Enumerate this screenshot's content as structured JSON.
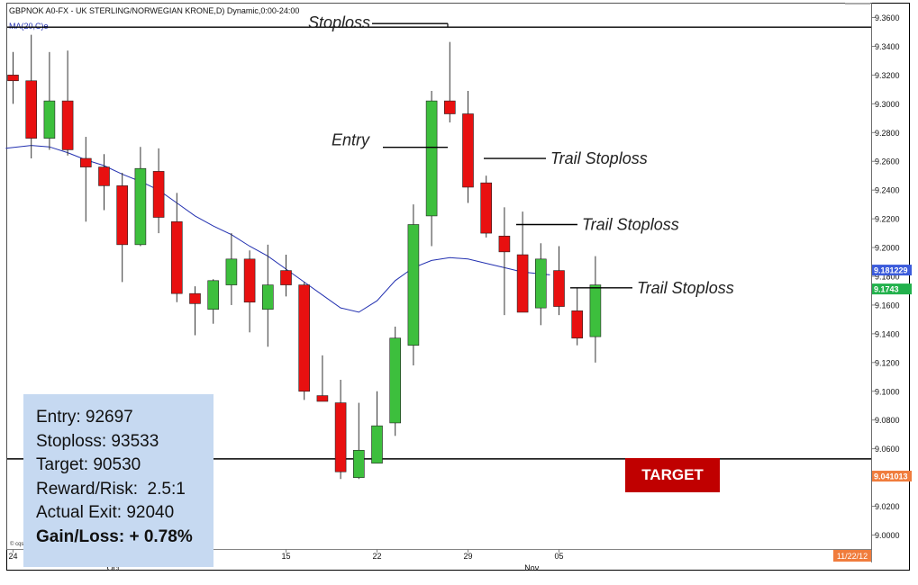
{
  "chart_header": {
    "symbol_line": "GBPNOK A0-FX - UK STERLING/NORWEGIAN KRONE,D) Dynamic,0:00-24:00",
    "indicator_line": "MA(20,C)e",
    "date_stamp": "11/22/12",
    "copyright": "© cqs"
  },
  "chart_data": {
    "type": "candlestick",
    "ylim": [
      8.99,
      9.37
    ],
    "y_ticks": [
      "9.3600",
      "9.3400",
      "9.3200",
      "9.3000",
      "9.2800",
      "9.2600",
      "9.2400",
      "9.2200",
      "9.2000",
      "9.1800",
      "9.1600",
      "9.1400",
      "9.1200",
      "9.1000",
      "9.0800",
      "9.0600",
      "9.0400",
      "9.0200",
      "9.0000"
    ],
    "y_tick_values": [
      9.36,
      9.34,
      9.32,
      9.3,
      9.28,
      9.26,
      9.24,
      9.22,
      9.2,
      9.18,
      9.16,
      9.14,
      9.12,
      9.1,
      9.08,
      9.06,
      9.04,
      9.02,
      9.0
    ],
    "x_tick_labels": [
      {
        "label": "24",
        "index": 0
      },
      {
        "label": "15",
        "index": 15
      },
      {
        "label": "22",
        "index": 20
      },
      {
        "label": "29",
        "index": 25
      },
      {
        "label": "05",
        "index": 30
      }
    ],
    "month_labels": [
      {
        "label": "Oct",
        "index": 5.5
      },
      {
        "label": "Nov",
        "index": 28.5
      }
    ],
    "candles": [
      {
        "o": 9.32,
        "h": 9.336,
        "l": 9.3,
        "c": 9.316
      },
      {
        "o": 9.316,
        "h": 9.348,
        "l": 9.262,
        "c": 9.276
      },
      {
        "o": 9.276,
        "h": 9.336,
        "l": 9.268,
        "c": 9.302
      },
      {
        "o": 9.302,
        "h": 9.337,
        "l": 9.264,
        "c": 9.268
      },
      {
        "o": 9.262,
        "h": 9.277,
        "l": 9.218,
        "c": 9.256
      },
      {
        "o": 9.256,
        "h": 9.265,
        "l": 9.226,
        "c": 9.243
      },
      {
        "o": 9.243,
        "h": 9.252,
        "l": 9.176,
        "c": 9.202
      },
      {
        "o": 9.202,
        "h": 9.27,
        "l": 9.201,
        "c": 9.255
      },
      {
        "o": 9.253,
        "h": 9.269,
        "l": 9.21,
        "c": 9.221
      },
      {
        "o": 9.218,
        "h": 9.238,
        "l": 9.162,
        "c": 9.168
      },
      {
        "o": 9.168,
        "h": 9.173,
        "l": 9.139,
        "c": 9.161
      },
      {
        "o": 9.157,
        "h": 9.178,
        "l": 9.147,
        "c": 9.177
      },
      {
        "o": 9.174,
        "h": 9.21,
        "l": 9.16,
        "c": 9.192
      },
      {
        "o": 9.192,
        "h": 9.198,
        "l": 9.141,
        "c": 9.162
      },
      {
        "o": 9.157,
        "h": 9.202,
        "l": 9.131,
        "c": 9.174
      },
      {
        "o": 9.184,
        "h": 9.195,
        "l": 9.166,
        "c": 9.174
      },
      {
        "o": 9.174,
        "h": 9.176,
        "l": 9.094,
        "c": 9.1
      },
      {
        "o": 9.097,
        "h": 9.125,
        "l": 9.093,
        "c": 9.093
      },
      {
        "o": 9.092,
        "h": 9.108,
        "l": 9.039,
        "c": 9.044
      },
      {
        "o": 9.04,
        "h": 9.092,
        "l": 9.039,
        "c": 9.059
      },
      {
        "o": 9.05,
        "h": 9.1,
        "l": 9.05,
        "c": 9.076
      },
      {
        "o": 9.078,
        "h": 9.145,
        "l": 9.069,
        "c": 9.137
      },
      {
        "o": 9.132,
        "h": 9.23,
        "l": 9.118,
        "c": 9.216
      },
      {
        "o": 9.222,
        "h": 9.309,
        "l": 9.201,
        "c": 9.302
      },
      {
        "o": 9.302,
        "h": 9.343,
        "l": 9.287,
        "c": 9.293
      },
      {
        "o": 9.293,
        "h": 9.309,
        "l": 9.231,
        "c": 9.242
      },
      {
        "o": 9.245,
        "h": 9.25,
        "l": 9.207,
        "c": 9.21
      },
      {
        "o": 9.208,
        "h": 9.228,
        "l": 9.153,
        "c": 9.197
      },
      {
        "o": 9.195,
        "h": 9.225,
        "l": 9.155,
        "c": 9.155
      },
      {
        "o": 9.158,
        "h": 9.203,
        "l": 9.146,
        "c": 9.192
      },
      {
        "o": 9.184,
        "h": 9.201,
        "l": 9.153,
        "c": 9.159
      },
      {
        "o": 9.156,
        "h": 9.172,
        "l": 9.132,
        "c": 9.137
      },
      {
        "o": 9.138,
        "h": 9.194,
        "l": 9.12,
        "c": 9.174
      }
    ],
    "ma": [
      {
        "x": -0.4,
        "y": 9.269
      },
      {
        "x": 1,
        "y": 9.271
      },
      {
        "x": 2,
        "y": 9.27
      },
      {
        "x": 3,
        "y": 9.266
      },
      {
        "x": 4,
        "y": 9.261
      },
      {
        "x": 5,
        "y": 9.257
      },
      {
        "x": 6,
        "y": 9.251
      },
      {
        "x": 7,
        "y": 9.246
      },
      {
        "x": 8,
        "y": 9.24
      },
      {
        "x": 9,
        "y": 9.231
      },
      {
        "x": 10,
        "y": 9.222
      },
      {
        "x": 11,
        "y": 9.215
      },
      {
        "x": 12,
        "y": 9.209
      },
      {
        "x": 13,
        "y": 9.201
      },
      {
        "x": 14,
        "y": 9.194
      },
      {
        "x": 15,
        "y": 9.185
      },
      {
        "x": 16,
        "y": 9.176
      },
      {
        "x": 17,
        "y": 9.167
      },
      {
        "x": 18,
        "y": 9.158
      },
      {
        "x": 19,
        "y": 9.155
      },
      {
        "x": 20,
        "y": 9.163
      },
      {
        "x": 21,
        "y": 9.177
      },
      {
        "x": 22,
        "y": 9.186
      },
      {
        "x": 23,
        "y": 9.191
      },
      {
        "x": 24,
        "y": 9.193
      },
      {
        "x": 25,
        "y": 9.192
      },
      {
        "x": 26,
        "y": 9.189
      },
      {
        "x": 27,
        "y": 9.186
      },
      {
        "x": 28,
        "y": 9.183
      },
      {
        "x": 29.5,
        "y": 9.181
      }
    ],
    "horizontal_levels": [
      {
        "name": "stoploss-level",
        "value": 9.3533
      },
      {
        "name": "target-level",
        "value": 9.053
      }
    ],
    "price_markers": [
      {
        "label": "9.181229",
        "value": 9.1812,
        "color": "#3b5bdb"
      },
      {
        "label": "9.1743",
        "value": 9.1743,
        "color": "#22b14c"
      },
      {
        "label": "9.041013",
        "value": 9.041,
        "color": "#f07c3c"
      }
    ],
    "annotations": [
      {
        "text": "Stoploss",
        "anchor_index": 23.9,
        "value": 9.3533
      },
      {
        "text": "Entry",
        "anchor_index": 22.5,
        "value": 9.2697
      },
      {
        "text": "Trail Stoploss",
        "anchor_index": 26.3,
        "value": 9.262
      },
      {
        "text": "Trail Stoploss",
        "anchor_index": 27.8,
        "value": 9.216
      },
      {
        "text": "Trail Stoploss",
        "anchor_index": 31.5,
        "value": 9.172
      }
    ],
    "colors": {
      "up": "#3dbf3d",
      "down": "#e81010",
      "ma": "#2230b0",
      "level": "#000000"
    }
  },
  "info_box": {
    "entry": "Entry: 92697",
    "stoploss": "Stoploss: 93533",
    "target": "Target: 90530",
    "reward_risk": "Reward/Risk:  2.5:1",
    "actual_exit": "Actual Exit: 92040",
    "gain_loss": "Gain/Loss: + 0.78%"
  },
  "target_label": "TARGET"
}
